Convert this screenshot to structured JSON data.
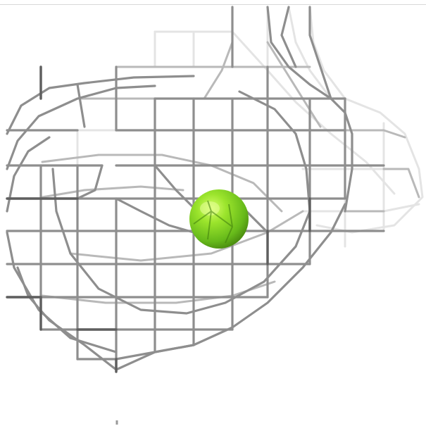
{
  "scene": {
    "background": "#ffffff",
    "mesh_color": "#8f8f8f",
    "mesh_highlight": "#e2e2e2",
    "mesh_shadow": "#5e5e5e",
    "sphere_color": "#7ed321",
    "sphere_highlight": "#c8f25a",
    "sphere_shadow": "#4f9a10",
    "objects": [
      {
        "kind": "wireframe-mesh",
        "icon": "mesh-cage-icon"
      },
      {
        "kind": "sphere",
        "icon": "green-sphere-icon"
      }
    ]
  }
}
